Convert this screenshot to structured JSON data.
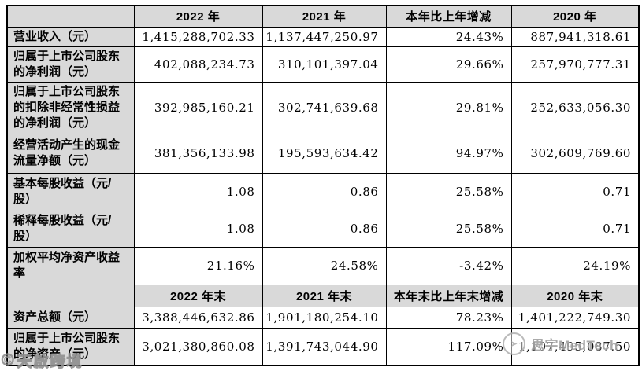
{
  "section1": {
    "columns": [
      "",
      "2022 年",
      "2021 年",
      "本年比上年增减",
      "2020 年"
    ],
    "rows": [
      {
        "label": "营业收入（元）",
        "cells": [
          "1,415,288,702.33",
          "1,137,447,250.97",
          "24.43%",
          "887,941,318.61"
        ]
      },
      {
        "label": "归属于上市公司股东的净利润（元）",
        "cells": [
          "402,088,234.73",
          "310,101,397.04",
          "29.66%",
          "257,970,777.31"
        ]
      },
      {
        "label": "归属于上市公司股东的扣除非经常性损益的净利润（元）",
        "cells": [
          "392,985,160.21",
          "302,741,639.68",
          "29.81%",
          "252,633,056.30"
        ]
      },
      {
        "label": "经营活动产生的现金流量净额（元）",
        "cells": [
          "381,356,133.98",
          "195,593,634.42",
          "94.97%",
          "302,609,769.60"
        ]
      },
      {
        "label": "基本每股收益（元/股）",
        "cells": [
          "1.08",
          "0.86",
          "25.58%",
          "0.71"
        ]
      },
      {
        "label": "稀释每股收益（元/股）",
        "cells": [
          "1.08",
          "0.86",
          "25.58%",
          "0.71"
        ]
      },
      {
        "label": "加权平均净资产收益率",
        "cells": [
          "21.16%",
          "24.58%",
          "-3.42%",
          "24.19%"
        ]
      }
    ]
  },
  "section2": {
    "columns": [
      "",
      "2022 年末",
      "2021 年末",
      "本年末比上年末增减",
      "2020 年末"
    ],
    "rows": [
      {
        "label": "资产总额（元）",
        "cells": [
          "3,388,446,632.86",
          "1,901,180,254.10",
          "78.23%",
          "1,401,222,749.30"
        ]
      },
      {
        "label": "归属于上市公司股东的净资产（元）",
        "cells": [
          "3,021,380,860.08",
          "1,391,743,044.90",
          "117.09%",
          "1,107,495,087.50"
        ]
      }
    ]
  },
  "watermarks": {
    "medtech_label": "思宇MedTech",
    "corner_logo": "©",
    "corner_label": "天啟跨境"
  },
  "colors": {
    "header_fill": "#d9d9d9",
    "label_fill": "#d9d9d9",
    "border": "#000000",
    "watermark_gray": "#a3a3a3"
  }
}
